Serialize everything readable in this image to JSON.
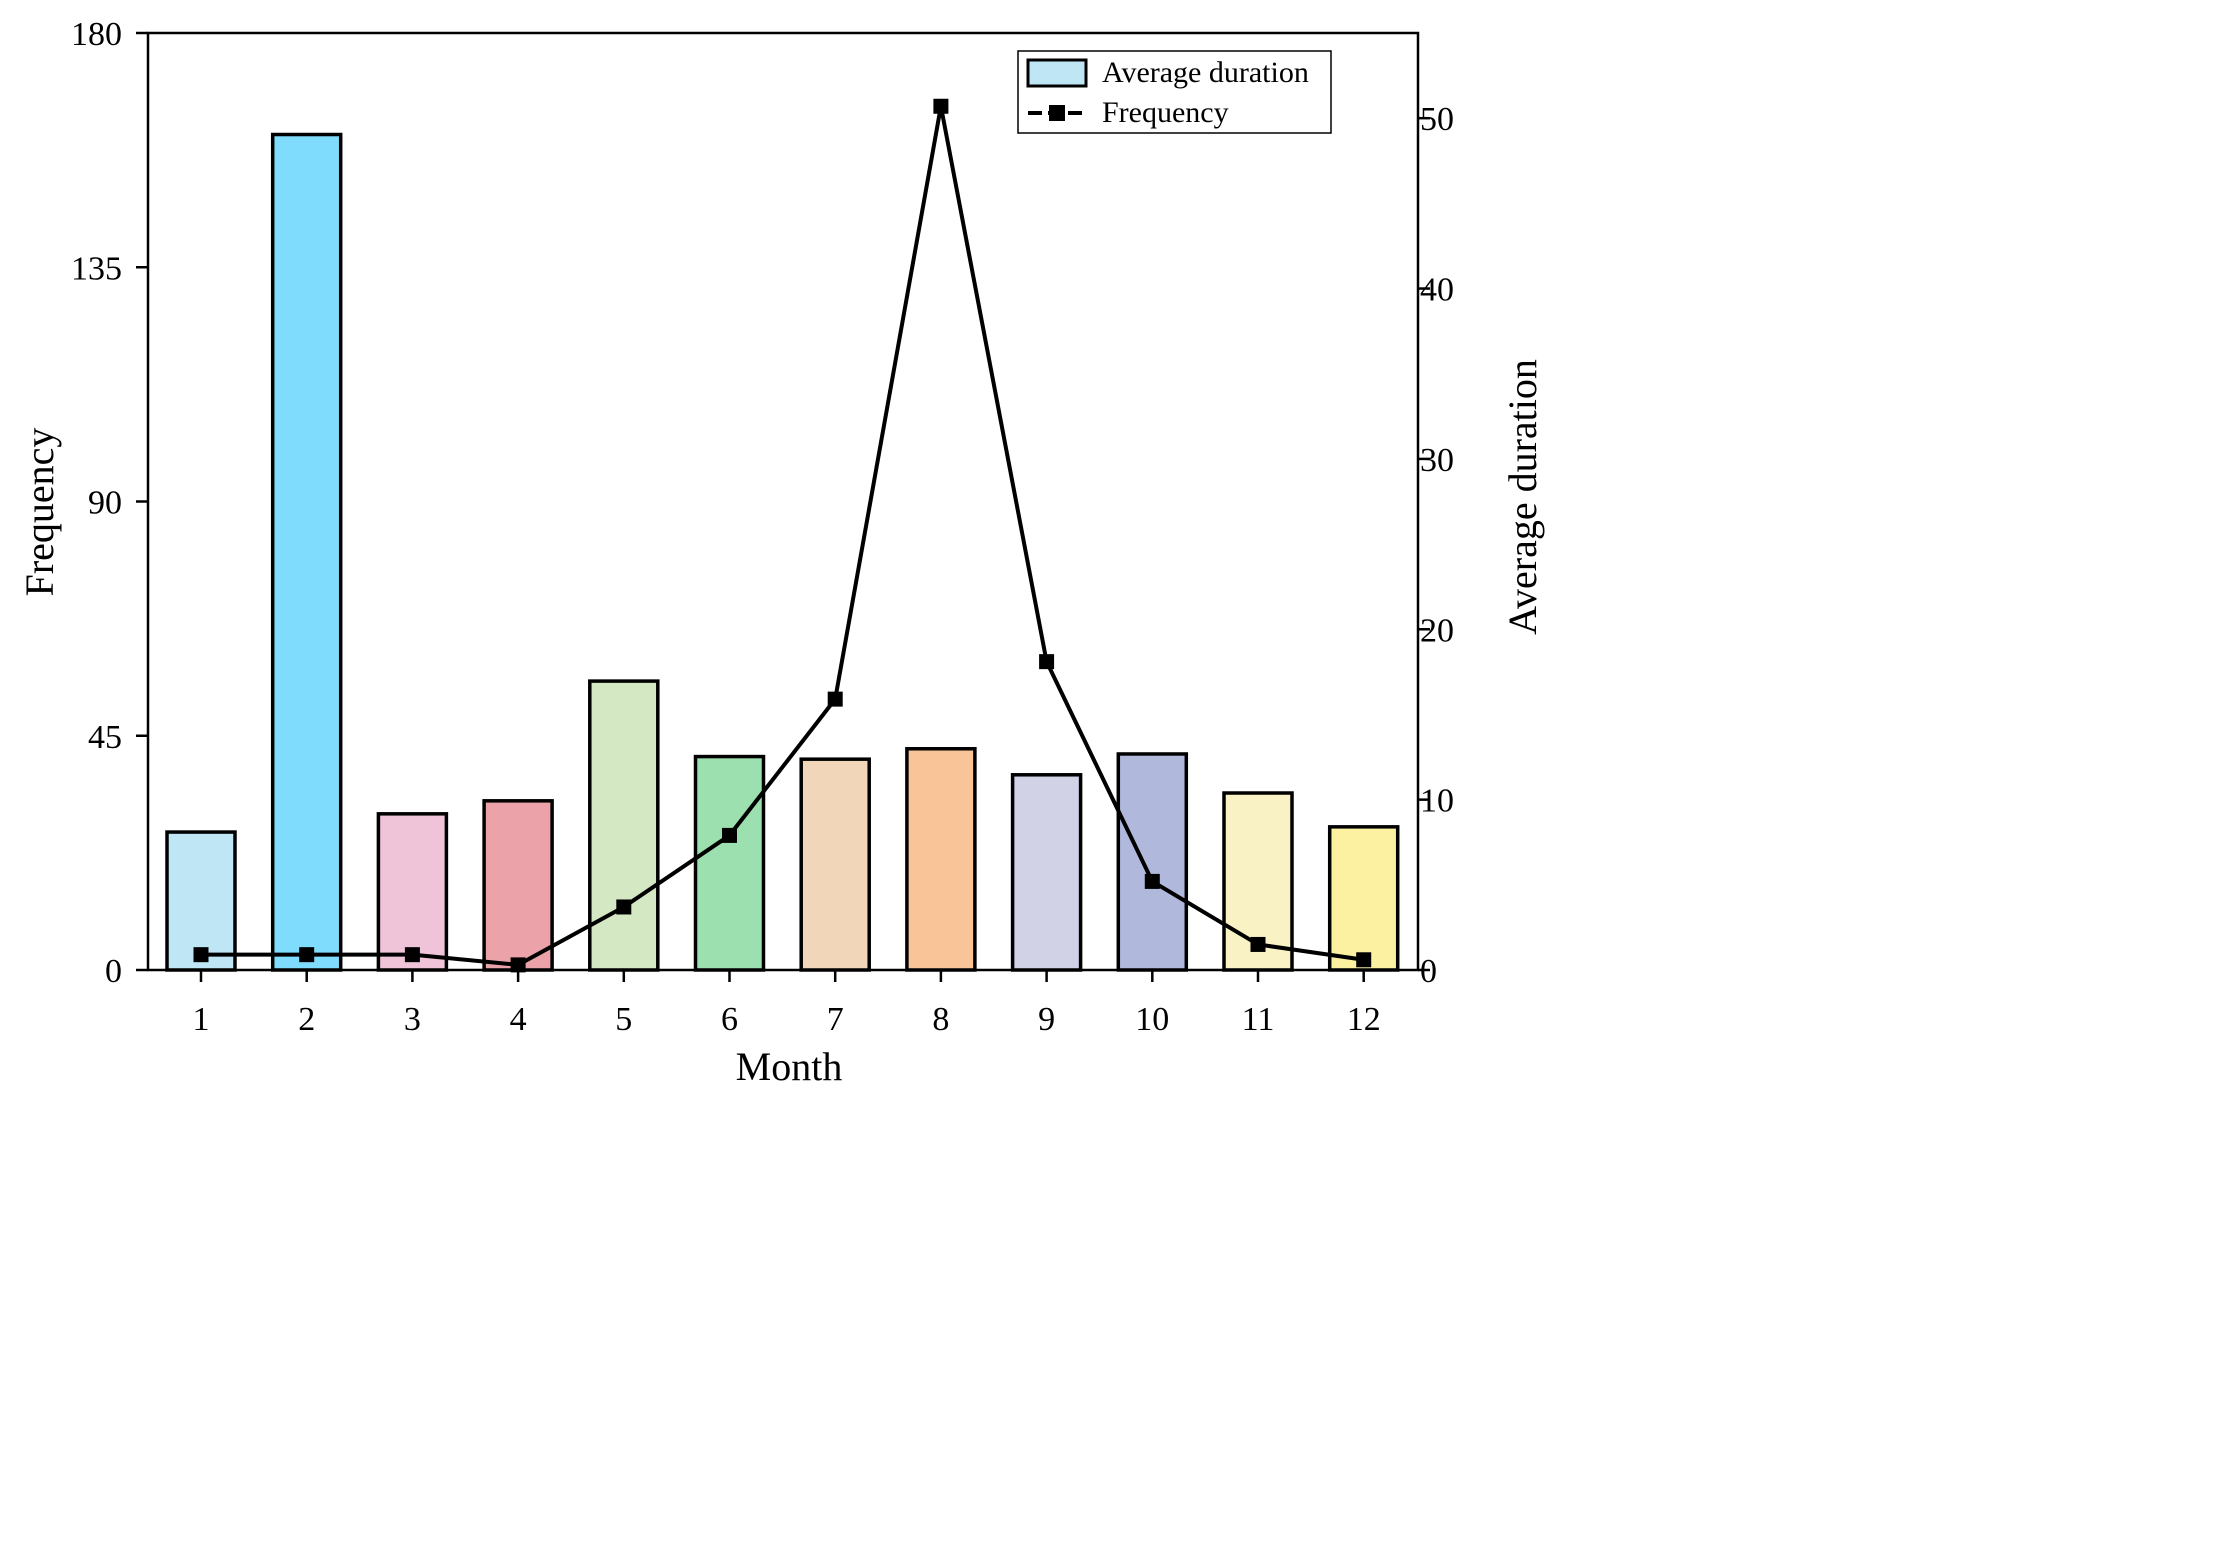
{
  "chart_data": {
    "type": "bar",
    "categories": [
      "1",
      "2",
      "3",
      "4",
      "5",
      "6",
      "7",
      "8",
      "9",
      "10",
      "11",
      "12"
    ],
    "xlabel": "Month",
    "ylabel_left": "Frequency",
    "ylabel_right": "Average duration",
    "left_axis": {
      "min": 0,
      "max": 180,
      "ticks": [
        "0",
        "45",
        "90",
        "135",
        "180"
      ]
    },
    "right_axis": {
      "min": 0,
      "max": 55,
      "ticks": [
        "0",
        "10",
        "20",
        "30",
        "40",
        "50"
      ]
    },
    "series": [
      {
        "name": "Average duration",
        "type": "bar",
        "axis": "left",
        "values": [
          26.5,
          160.5,
          30,
          32.5,
          55.5,
          41,
          40.5,
          42.5,
          37.5,
          41.5,
          34,
          27.5
        ],
        "colors": [
          "#BEE6F4",
          "#80DCFC",
          "#F0C4D8",
          "#EBA2A8",
          "#D4E8C4",
          "#9BE0AE",
          "#F2D6BA",
          "#F8C498",
          "#D2D2E6",
          "#B0B8DC",
          "#F8F2C4",
          "#FCF1A1"
        ]
      },
      {
        "name": "Frequency",
        "type": "line",
        "axis": "right",
        "values": [
          0.9,
          0.9,
          0.9,
          0.3,
          3.7,
          7.9,
          15.9,
          50.7,
          18.1,
          5.2,
          1.5,
          0.6
        ],
        "color": "#000000"
      }
    ],
    "legend": {
      "position": "top-right",
      "items": [
        {
          "label": "Average duration",
          "swatch": "#BEE6F4"
        },
        {
          "label": "Frequency",
          "swatch": "#000000"
        }
      ]
    }
  }
}
